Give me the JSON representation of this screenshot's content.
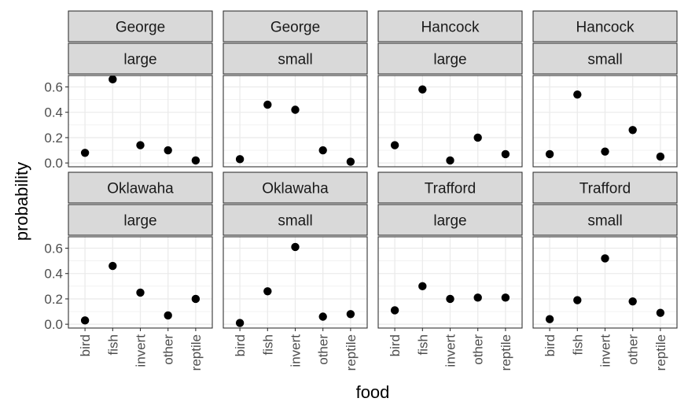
{
  "chart_data": {
    "type": "scatter",
    "xlabel": "food",
    "ylabel": "probability",
    "categories": [
      "bird",
      "fish",
      "invert",
      "other",
      "reptile"
    ],
    "y_ticks": [
      "0.0",
      "0.2",
      "0.4",
      "0.6"
    ],
    "ylim": [
      -0.03,
      0.69
    ],
    "grid": true,
    "colors": {
      "panel_border": "#333333",
      "strip_fill": "#d9d9d9",
      "grid": "#ebebeb",
      "point": "#000000",
      "tick_text": "#4d4d4d"
    },
    "panels": [
      {
        "lake": "George",
        "size": "large",
        "values": [
          0.08,
          0.66,
          0.14,
          0.1,
          0.02
        ]
      },
      {
        "lake": "George",
        "size": "small",
        "values": [
          0.03,
          0.46,
          0.42,
          0.1,
          0.01
        ]
      },
      {
        "lake": "Hancock",
        "size": "large",
        "values": [
          0.14,
          0.58,
          0.02,
          0.2,
          0.07
        ]
      },
      {
        "lake": "Hancock",
        "size": "small",
        "values": [
          0.07,
          0.54,
          0.09,
          0.26,
          0.05
        ]
      },
      {
        "lake": "Oklawaha",
        "size": "large",
        "values": [
          0.03,
          0.46,
          0.25,
          0.07,
          0.2
        ]
      },
      {
        "lake": "Oklawaha",
        "size": "small",
        "values": [
          0.01,
          0.26,
          0.61,
          0.06,
          0.08
        ]
      },
      {
        "lake": "Trafford",
        "size": "large",
        "values": [
          0.11,
          0.3,
          0.2,
          0.21,
          0.21
        ]
      },
      {
        "lake": "Trafford",
        "size": "small",
        "values": [
          0.04,
          0.19,
          0.52,
          0.18,
          0.09
        ]
      }
    ]
  }
}
